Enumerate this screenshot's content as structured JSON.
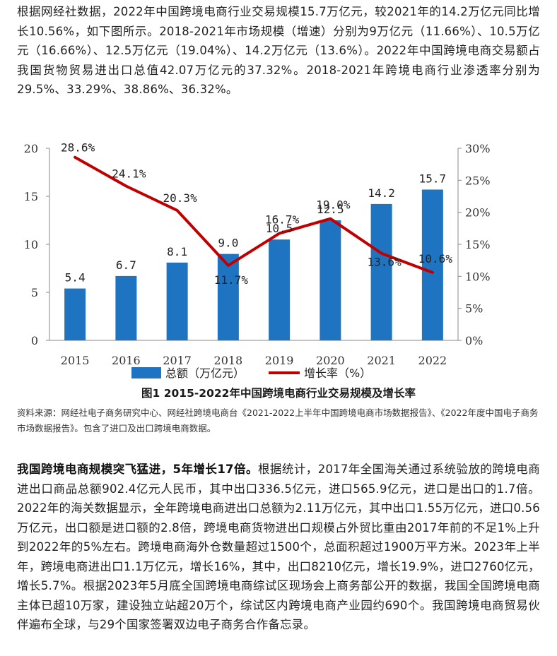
{
  "intro_paragraph": "根据网经社数据，2022年中国跨境电商行业交易规模15.7万亿元，较2021年的14.2万亿元同比增长10.56%，如下图所示。2018-2021年市场规模（增速）分别为9万亿元（11.66%）、10.5万亿元（16.66%）、12.5万亿元（19.04%）、14.2万亿元（13.6%）。2022年中国跨境电商交易额占我国货物贸易进出口总值42.07万亿元的37.32%。2018-2021年跨境电商行业渗透率分别为29.5%、33.29%、38.86%、36.32%。",
  "figure_caption": "图1  2015-2022年中国跨境电商行业交易规模及增长率",
  "source_note": "资料来源：网经社电子商务研究中心、网经社跨境电商台《2021-2022上半年中国跨境电商市场数据报告》、《2022年度中国电子商务市场数据报告》。包含了进口及出口跨境电商数据。",
  "second_paragraph": {
    "lead": "我国跨境电商规模突飞猛进，5年增长17倍。",
    "body": "根据统计，2017年全国海关通过系统验放的跨境电商进出口商品总额902.4亿元人民币，其中出口336.5亿元，进口565.9亿元，进口是出口的1.7倍。2022年的海关数据显示，全年跨境电商进出口总额为2.11万亿元，其中出口1.55万亿元，进口0.56万亿元，出口额是进口额的2.8倍，跨境电商货物进出口规模占外贸比重由2017年前的不足1%上升到2022年的5%左右。跨境电商海外仓数量超过1500个，总面积超过1900万平方米。2023年上半年，跨境电商进出口1.1万亿元，增长16%，其中，出口8210亿元，增长19.9%，进口2760亿元，增长5.7%。根据2023年5月底全国跨境电商综试区现场会上商务部公开的数据，我国全国跨境电商主体已超10万家，建设独立站超20万个，综试区内跨境电商产业园约690个。我国跨境电商贸易伙伴遍布全球，与29个国家签署双边电子商务合作备忘录。"
  },
  "chart_data": {
    "type": "bar",
    "categories": [
      "2015",
      "2016",
      "2017",
      "2018",
      "2019",
      "2020",
      "2021",
      "2022"
    ],
    "series": [
      {
        "name": "总额（万亿元）",
        "kind": "bar",
        "axis": "left",
        "color": "#1f74c2",
        "values": [
          5.4,
          6.7,
          8.1,
          9.0,
          10.5,
          12.5,
          14.2,
          15.7
        ],
        "labels": [
          "5.4",
          "6.7",
          "8.1",
          "9.0",
          "10.5",
          "12.5",
          "14.2",
          "15.7"
        ]
      },
      {
        "name": "增长率（%）",
        "kind": "line",
        "axis": "right",
        "color": "#c00000",
        "values": [
          28.6,
          24.1,
          20.3,
          11.7,
          16.7,
          19.0,
          13.6,
          10.6
        ],
        "labels": [
          "28.6%",
          "24.1%",
          "20.3%",
          "11.7%",
          "16.7%",
          "19.0%",
          "13.6%",
          "10.6%"
        ]
      }
    ],
    "y_left": {
      "ylim": [
        0,
        20
      ],
      "ticks": [
        "0",
        "5",
        "10",
        "15",
        "20"
      ]
    },
    "y_right": {
      "ylim": [
        0,
        30
      ],
      "ticks": [
        "0%",
        "5%",
        "10%",
        "15%",
        "20%",
        "25%",
        "30%"
      ]
    },
    "grid": false,
    "legend_position": "bottom"
  }
}
